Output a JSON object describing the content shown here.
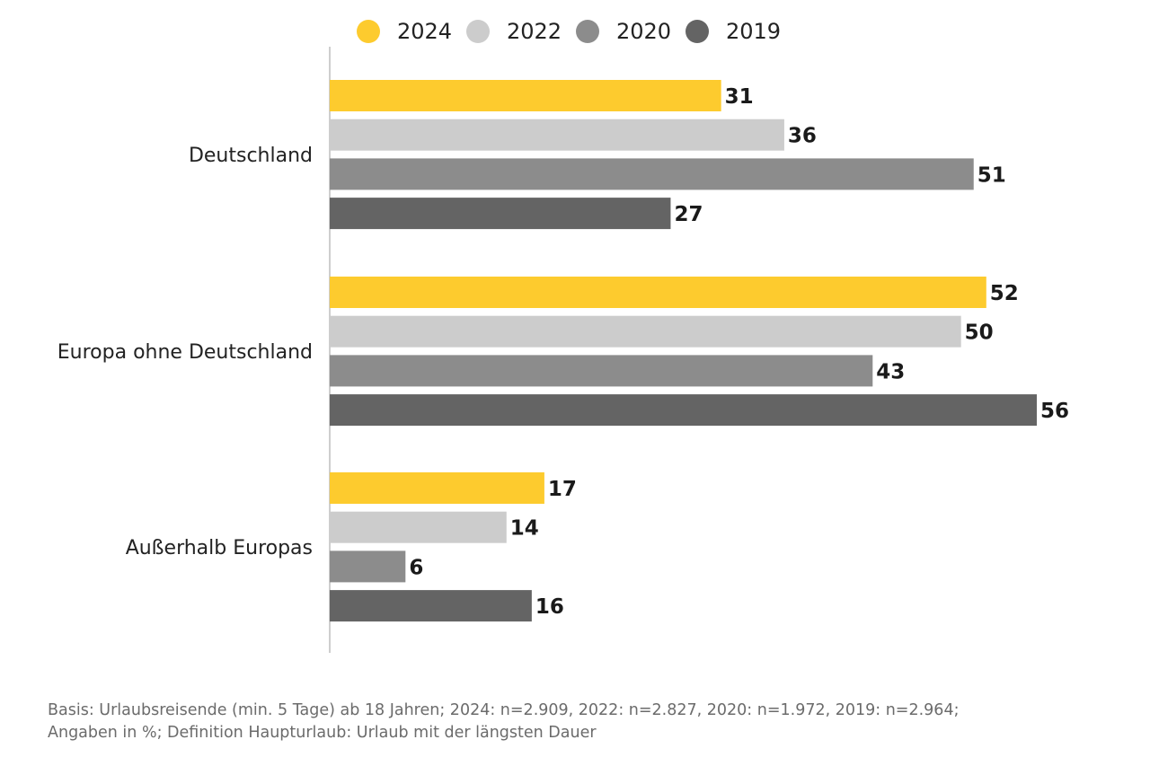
{
  "chart_data": {
    "type": "bar",
    "orientation": "horizontal",
    "categories": [
      "Deutschland",
      "Europa ohne Deutschland",
      "Außerhalb Europas"
    ],
    "series": [
      {
        "name": "2024",
        "color": "#fdcb2e",
        "values": [
          31,
          52,
          17
        ]
      },
      {
        "name": "2022",
        "color": "#cccccc",
        "values": [
          36,
          50,
          14
        ]
      },
      {
        "name": "2020",
        "color": "#8c8c8c",
        "values": [
          51,
          43,
          6
        ]
      },
      {
        "name": "2019",
        "color": "#646464",
        "values": [
          27,
          56,
          16
        ]
      }
    ],
    "xlim": [
      0,
      60
    ],
    "grid": false,
    "legend": "top-center"
  },
  "footnote": {
    "line1": "Basis: Urlaubsreisende (min. 5 Tage) ab 18 Jahren; 2024: n=2.909, 2022: n=2.827, 2020: n=1.972, 2019: n=2.964;",
    "line2": "Angaben in %; Definition Haupturlaub: Urlaub mit der längsten Dauer"
  }
}
